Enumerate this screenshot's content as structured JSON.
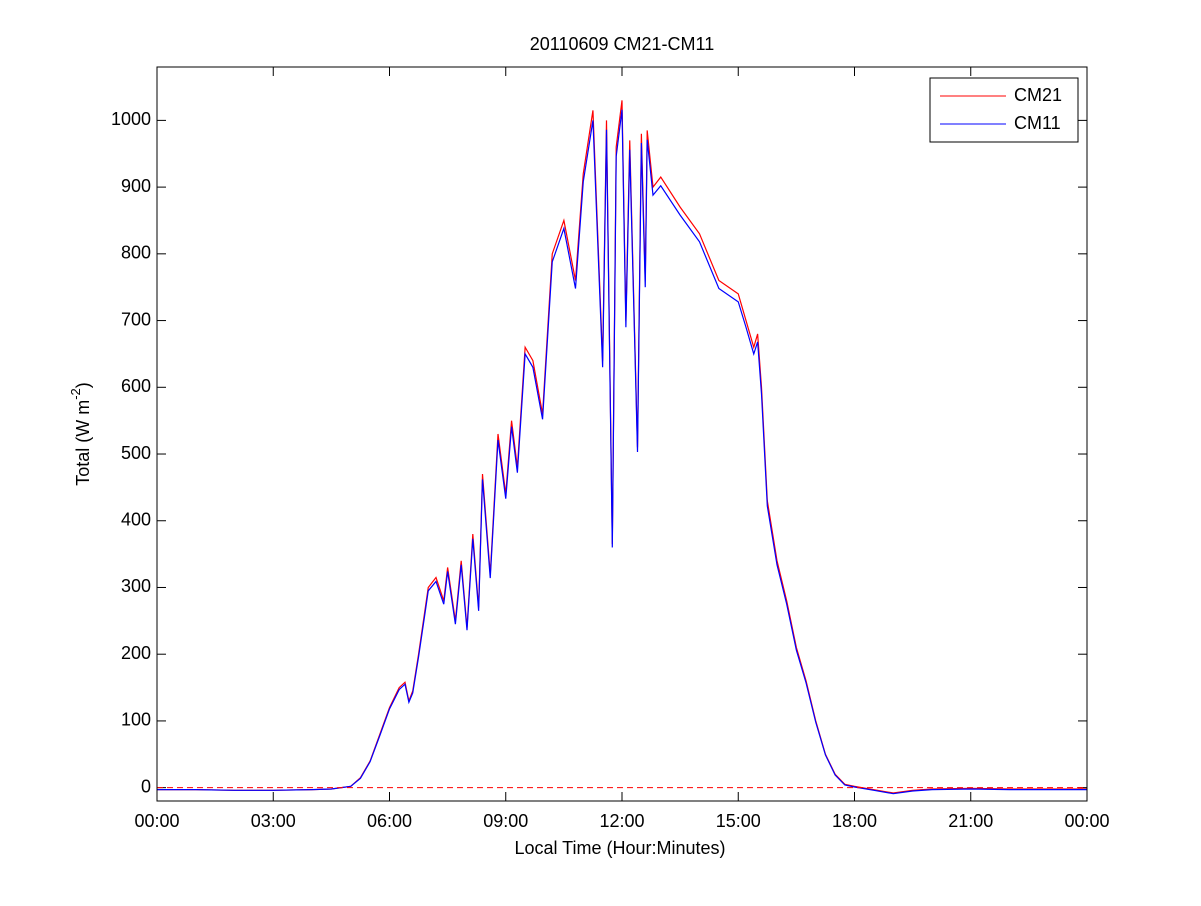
{
  "chart_data": {
    "type": "line",
    "title": "20110609 CM21-CM11",
    "xlabel": "Local Time (Hour:Minutes)",
    "ylabel": {
      "text": "Total (W m",
      "superscript": "-2",
      "suffix": ")"
    },
    "x": [
      0,
      1,
      2,
      3,
      4,
      4.5,
      5,
      5.25,
      5.5,
      5.75,
      6,
      6.25,
      6.4,
      6.5,
      6.6,
      6.75,
      6.9,
      7,
      7.2,
      7.4,
      7.5,
      7.7,
      7.85,
      8,
      8.15,
      8.3,
      8.4,
      8.6,
      8.8,
      9,
      9.15,
      9.3,
      9.5,
      9.7,
      9.95,
      10.2,
      10.5,
      10.8,
      11,
      11.25,
      11.5,
      11.6,
      11.75,
      11.85,
      12,
      12.1,
      12.2,
      12.4,
      12.5,
      12.6,
      12.65,
      12.8,
      13,
      13.5,
      14,
      14.5,
      15,
      15.2,
      15.4,
      15.5,
      15.6,
      15.75,
      16,
      16.25,
      16.5,
      16.75,
      17,
      17.25,
      17.5,
      17.75,
      18,
      18.5,
      19,
      19.5,
      20,
      21,
      22,
      23,
      24
    ],
    "series": [
      {
        "name": "CM21",
        "color": "#ff0000",
        "values": [
          -3,
          -3,
          -4,
          -4,
          -3,
          -2,
          2,
          15,
          40,
          80,
          120,
          150,
          158,
          130,
          145,
          200,
          260,
          300,
          315,
          280,
          330,
          250,
          340,
          240,
          380,
          270,
          470,
          320,
          530,
          440,
          550,
          480,
          660,
          640,
          560,
          800,
          850,
          760,
          920,
          1015,
          640,
          1000,
          365,
          960,
          1030,
          700,
          970,
          510,
          980,
          760,
          985,
          900,
          915,
          870,
          830,
          760,
          740,
          700,
          660,
          680,
          600,
          430,
          340,
          280,
          210,
          160,
          100,
          50,
          20,
          5,
          2,
          -3,
          -8,
          -4,
          -2,
          -1,
          -2,
          -2,
          -2
        ]
      },
      {
        "name": "CM11",
        "color": "#0000ff",
        "values": [
          -3,
          -3,
          -4,
          -4,
          -3,
          -2,
          2,
          14,
          39,
          78,
          118,
          147,
          155,
          128,
          142,
          196,
          255,
          295,
          309,
          275,
          324,
          245,
          334,
          236,
          373,
          265,
          462,
          314,
          521,
          433,
          541,
          472,
          650,
          630,
          552,
          788,
          838,
          748,
          908,
          1000,
          630,
          986,
          360,
          946,
          1016,
          690,
          956,
          503,
          966,
          750,
          971,
          888,
          902,
          858,
          818,
          748,
          728,
          690,
          650,
          668,
          590,
          422,
          334,
          275,
          206,
          157,
          98,
          49,
          19,
          4,
          1,
          -4,
          -9,
          -5,
          -3,
          -2,
          -3,
          -3,
          -3
        ]
      }
    ],
    "xlim": [
      0,
      24
    ],
    "xticks": [
      {
        "value": 0,
        "label": "00:00"
      },
      {
        "value": 3,
        "label": "03:00"
      },
      {
        "value": 6,
        "label": "06:00"
      },
      {
        "value": 9,
        "label": "09:00"
      },
      {
        "value": 12,
        "label": "12:00"
      },
      {
        "value": 15,
        "label": "15:00"
      },
      {
        "value": 18,
        "label": "18:00"
      },
      {
        "value": 21,
        "label": "21:00"
      },
      {
        "value": 24,
        "label": "00:00"
      }
    ],
    "ylim": [
      -20,
      1080
    ],
    "yticks": [
      0,
      100,
      200,
      300,
      400,
      500,
      600,
      700,
      800,
      900,
      1000
    ],
    "hline": {
      "y": 0,
      "color": "#ff0000",
      "style": "dashed"
    },
    "legend": "upper right",
    "grid": false
  }
}
